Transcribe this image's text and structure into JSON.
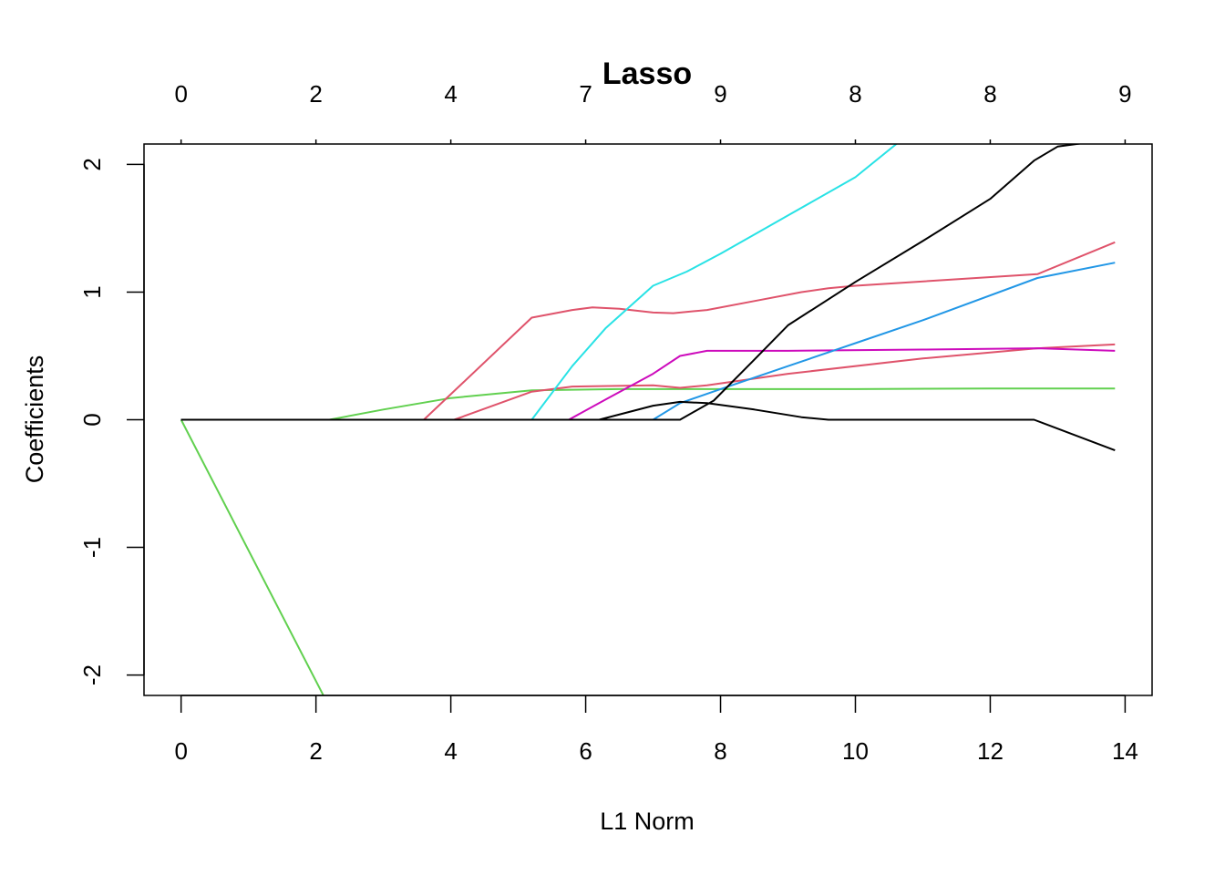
{
  "chart_data": {
    "type": "line",
    "title": "Lasso",
    "xlabel": "L1 Norm",
    "ylabel": "Coefficients",
    "xlim": [
      -0.55,
      14.4
    ],
    "ylim": [
      -2.16,
      2.16
    ],
    "x_ticks": [
      "0",
      "2",
      "4",
      "6",
      "8",
      "10",
      "12",
      "14"
    ],
    "y_ticks": [
      "-2",
      "-1",
      "0",
      "1",
      "2"
    ],
    "top_axis": {
      "positions": [
        0,
        2,
        4,
        6,
        8,
        10,
        12,
        14
      ],
      "labels": [
        "0",
        "2",
        "4",
        "7",
        "9",
        "8",
        "8",
        "9"
      ]
    },
    "grid": false,
    "legend": "none",
    "series": [
      {
        "color": "#61D04F",
        "points": [
          [
            0,
            0
          ],
          [
            2.15,
            -2.2
          ]
        ]
      },
      {
        "color": "#61D04F",
        "points": [
          [
            0,
            0
          ],
          [
            2.2,
            0
          ],
          [
            3.0,
            0.08
          ],
          [
            4.0,
            0.17
          ],
          [
            5.2,
            0.23
          ],
          [
            6.5,
            0.24
          ],
          [
            8.0,
            0.24
          ],
          [
            10.0,
            0.24
          ],
          [
            12.0,
            0.245
          ],
          [
            13.85,
            0.245
          ]
        ]
      },
      {
        "color": "#DF536B",
        "points": [
          [
            0,
            0
          ],
          [
            3.6,
            0
          ],
          [
            4.0,
            0.2
          ],
          [
            5.2,
            0.8
          ],
          [
            5.8,
            0.86
          ],
          [
            6.1,
            0.88
          ],
          [
            6.5,
            0.87
          ],
          [
            7.0,
            0.84
          ],
          [
            7.3,
            0.835
          ],
          [
            7.8,
            0.86
          ],
          [
            8.5,
            0.93
          ],
          [
            9.2,
            1.0
          ],
          [
            9.6,
            1.03
          ],
          [
            10.0,
            1.05
          ],
          [
            11.5,
            1.1
          ],
          [
            12.7,
            1.14
          ],
          [
            13.85,
            1.39
          ]
        ]
      },
      {
        "color": "#DF536B",
        "points": [
          [
            0,
            0
          ],
          [
            4.05,
            0
          ],
          [
            5.2,
            0.22
          ],
          [
            5.8,
            0.26
          ],
          [
            7.0,
            0.27
          ],
          [
            7.4,
            0.25
          ],
          [
            7.8,
            0.27
          ],
          [
            9.0,
            0.36
          ],
          [
            11.0,
            0.48
          ],
          [
            12.7,
            0.56
          ],
          [
            13.85,
            0.59
          ]
        ]
      },
      {
        "color": "#28E2E5",
        "points": [
          [
            0,
            0
          ],
          [
            5.2,
            0
          ],
          [
            5.8,
            0.42
          ],
          [
            6.3,
            0.72
          ],
          [
            7.0,
            1.05
          ],
          [
            7.5,
            1.16
          ],
          [
            8.0,
            1.3
          ],
          [
            9.0,
            1.6
          ],
          [
            10.0,
            1.9
          ],
          [
            10.7,
            2.2
          ]
        ]
      },
      {
        "color": "#CD0BBC",
        "points": [
          [
            0,
            0
          ],
          [
            5.75,
            0
          ],
          [
            6.3,
            0.16
          ],
          [
            7.0,
            0.36
          ],
          [
            7.4,
            0.5
          ],
          [
            7.8,
            0.54
          ],
          [
            9.0,
            0.54
          ],
          [
            11.0,
            0.55
          ],
          [
            12.7,
            0.56
          ],
          [
            13.85,
            0.54
          ]
        ]
      },
      {
        "color": "#2297E6",
        "points": [
          [
            0,
            0
          ],
          [
            7.0,
            0
          ],
          [
            7.4,
            0.13
          ],
          [
            8.0,
            0.24
          ],
          [
            9.0,
            0.42
          ],
          [
            10.0,
            0.6
          ],
          [
            11.0,
            0.78
          ],
          [
            12.7,
            1.11
          ],
          [
            13.85,
            1.23
          ]
        ]
      },
      {
        "color": "#000000",
        "points": [
          [
            0,
            0
          ],
          [
            6.2,
            0
          ],
          [
            7.0,
            0.11
          ],
          [
            7.4,
            0.14
          ],
          [
            7.8,
            0.13
          ],
          [
            8.5,
            0.08
          ],
          [
            9.2,
            0.02
          ],
          [
            9.6,
            0
          ],
          [
            12.65,
            0
          ],
          [
            13.85,
            -0.24
          ]
        ]
      },
      {
        "color": "#000000",
        "points": [
          [
            0,
            0
          ],
          [
            7.4,
            0
          ],
          [
            7.9,
            0.15
          ],
          [
            8.5,
            0.47
          ],
          [
            9.0,
            0.74
          ],
          [
            10.0,
            1.08
          ],
          [
            11.0,
            1.4
          ],
          [
            12.0,
            1.73
          ],
          [
            12.65,
            2.03
          ],
          [
            13.0,
            2.14
          ],
          [
            13.85,
            2.2
          ]
        ]
      }
    ]
  }
}
